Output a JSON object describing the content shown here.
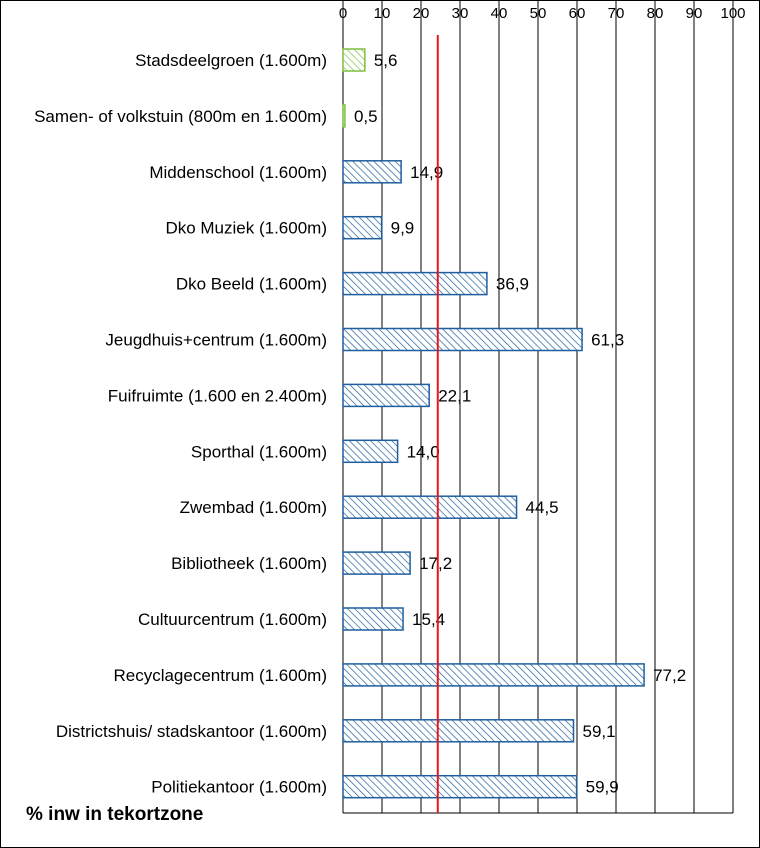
{
  "chart_data": {
    "type": "bar",
    "orientation": "horizontal",
    "caption": "% inw in tekortzone",
    "xlim": [
      0,
      100
    ],
    "x_ticks": [
      0,
      10,
      20,
      30,
      40,
      50,
      60,
      70,
      80,
      90,
      100
    ],
    "x_axis_position": "top",
    "grid": "vertical",
    "reference_line": {
      "value": 24.3,
      "color": "#e8161b"
    },
    "categories": [
      "Stadsdeelgroen (1.600m)",
      "Samen- of volkstuin (800m en 1.600m)",
      "Middenschool (1.600m)",
      "Dko Muziek (1.600m)",
      "Dko Beeld (1.600m)",
      "Jeugdhuis+centrum (1.600m)",
      "Fuifruimte (1.600 en 2.400m)",
      "Sporthal (1.600m)",
      "Zwembad (1.600m)",
      "Bibliotheek (1.600m)",
      "Cultuurcentrum (1.600m)",
      "Recyclagecentrum (1.600m)",
      "Districtshuis/ stadskantoor (1.600m)",
      "Politiekantoor (1.600m)"
    ],
    "values": [
      5.6,
      0.5,
      14.9,
      9.9,
      36.9,
      61.3,
      22.1,
      14.0,
      44.5,
      17.2,
      15.4,
      77.2,
      59.1,
      59.9
    ],
    "value_labels": [
      "5,6",
      "0,5",
      "14,9",
      "9,9",
      "36,9",
      "61,3",
      "22,1",
      "14,0",
      "44,5",
      "17,2",
      "15,4",
      "77,2",
      "59,1",
      "59,9"
    ],
    "bar_colors": [
      "#7fbf3f",
      "#7fbf3f",
      "#1f5f9f",
      "#1f5f9f",
      "#1f5f9f",
      "#1f5f9f",
      "#1f5f9f",
      "#1f5f9f",
      "#1f5f9f",
      "#1f5f9f",
      "#1f5f9f",
      "#1f5f9f",
      "#1f5f9f",
      "#1f5f9f"
    ]
  }
}
